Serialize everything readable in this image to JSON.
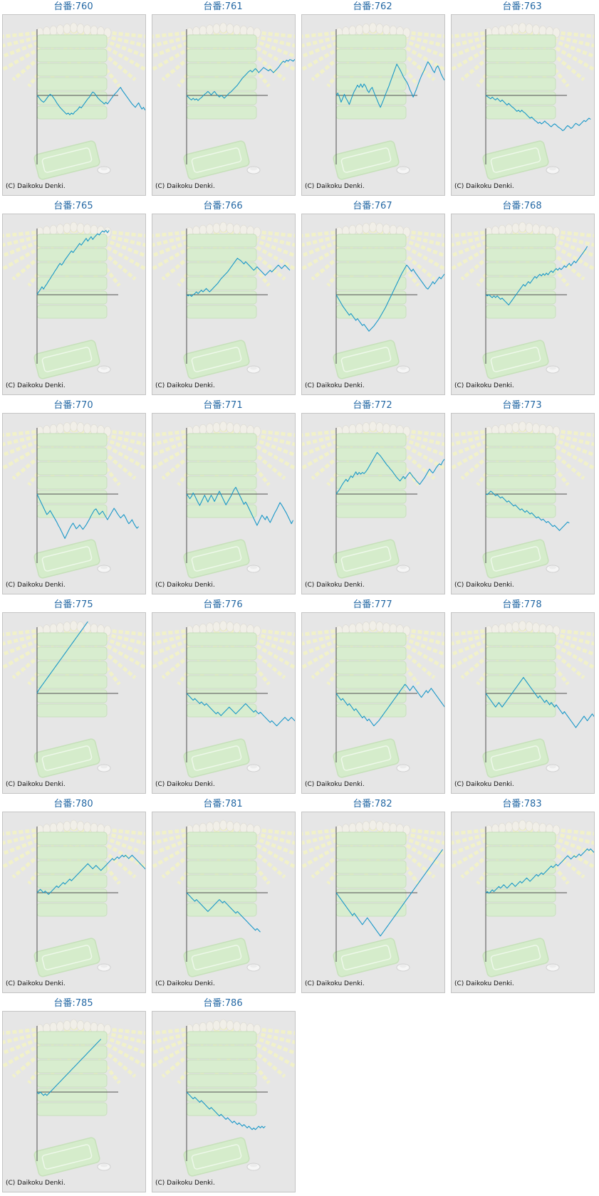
{
  "copyright": "(C) Daikoku Denki.",
  "colors": {
    "title": "#2468a4",
    "line": "#1a98c8",
    "axis": "#505050",
    "panel": "#e6e6e6"
  },
  "chart_data": [
    {
      "type": "line",
      "title": "台番:760",
      "values": [
        0,
        -3,
        -7,
        -10,
        -12,
        -9,
        -5,
        -1,
        2,
        0,
        -4,
        -8,
        -13,
        -17,
        -21,
        -24,
        -27,
        -30,
        -33,
        -31,
        -34,
        -31,
        -33,
        -29,
        -27,
        -24,
        -20,
        -22,
        -18,
        -14,
        -10,
        -6,
        -3,
        2,
        6,
        4,
        0,
        -4,
        -7,
        -10,
        -12,
        -15,
        -12,
        -15,
        -11,
        -7,
        -3,
        1,
        4,
        7,
        11,
        14,
        9,
        5,
        1,
        -3,
        -7,
        -11,
        -15,
        -18,
        -21,
        -17,
        -13,
        -19,
        -24,
        -21,
        -26
      ]
    },
    {
      "type": "line",
      "title": "台番:761",
      "values": [
        0,
        -3,
        -6,
        -8,
        -5,
        -8,
        -6,
        -9,
        -6,
        -4,
        -1,
        2,
        4,
        7,
        4,
        1,
        4,
        7,
        3,
        0,
        -3,
        0,
        -2,
        -5,
        -2,
        1,
        4,
        6,
        9,
        12,
        15,
        18,
        22,
        26,
        30,
        33,
        36,
        39,
        42,
        44,
        41,
        44,
        47,
        44,
        40,
        43,
        46,
        49,
        47,
        45,
        43,
        46,
        43,
        40,
        43,
        46,
        49,
        53,
        57,
        60,
        58,
        62,
        60,
        63,
        62,
        60,
        63,
        61,
        65,
        69,
        72,
        76
      ]
    },
    {
      "type": "line",
      "title": "台番:762",
      "values": [
        0,
        4,
        -3,
        -12,
        -5,
        2,
        -5,
        -10,
        -16,
        -8,
        0,
        7,
        12,
        18,
        14,
        20,
        14,
        20,
        16,
        9,
        5,
        11,
        14,
        6,
        -1,
        -8,
        -15,
        -21,
        -14,
        -7,
        1,
        8,
        15,
        23,
        31,
        39,
        47,
        55,
        50,
        45,
        39,
        33,
        28,
        24,
        18,
        10,
        4,
        -3,
        4,
        11,
        19,
        27,
        34,
        40,
        46,
        53,
        59,
        55,
        50,
        44,
        40,
        48,
        52,
        46,
        38,
        32,
        27,
        34,
        26,
        19,
        14,
        8,
        4,
        9,
        14,
        16
      ]
    },
    {
      "type": "line",
      "title": "台番:763",
      "values": [
        0,
        -2,
        -4,
        -6,
        -3,
        -6,
        -8,
        -5,
        -8,
        -11,
        -8,
        -11,
        -14,
        -17,
        -14,
        -17,
        -20,
        -22,
        -25,
        -28,
        -26,
        -29,
        -26,
        -29,
        -31,
        -34,
        -37,
        -40,
        -38,
        -41,
        -44,
        -46,
        -49,
        -47,
        -50,
        -48,
        -45,
        -48,
        -50,
        -53,
        -55,
        -52,
        -50,
        -52,
        -55,
        -57,
        -59,
        -62,
        -60,
        -56,
        -53,
        -55,
        -58,
        -56,
        -52,
        -49,
        -51,
        -53,
        -50,
        -47,
        -44,
        -46,
        -43,
        -40,
        -42
      ]
    },
    {
      "type": "line",
      "title": "台番:765",
      "values": [
        0,
        5,
        9,
        14,
        10,
        15,
        19,
        24,
        28,
        33,
        37,
        42,
        46,
        51,
        55,
        52,
        56,
        61,
        65,
        69,
        73,
        77,
        74,
        78,
        82,
        86,
        90,
        87,
        91,
        95,
        99,
        94,
        98,
        102,
        97,
        101,
        104,
        107,
        105,
        109,
        112,
        110,
        113,
        109,
        113
      ]
    },
    {
      "type": "line",
      "title": "台番:766",
      "values": [
        0,
        -2,
        0,
        -3,
        0,
        2,
        5,
        2,
        5,
        8,
        5,
        8,
        11,
        8,
        5,
        8,
        11,
        14,
        17,
        20,
        24,
        28,
        31,
        34,
        37,
        40,
        44,
        48,
        52,
        56,
        60,
        64,
        62,
        60,
        57,
        54,
        58,
        55,
        52,
        49,
        46,
        43,
        46,
        49,
        46,
        43,
        40,
        37,
        34,
        37,
        40,
        43,
        40,
        43,
        46,
        49,
        52,
        49,
        46,
        49,
        52,
        49,
        46,
        43
      ]
    },
    {
      "type": "line",
      "title": "台番:767",
      "values": [
        0,
        -5,
        -10,
        -15,
        -20,
        -24,
        -28,
        -32,
        -36,
        -33,
        -37,
        -41,
        -45,
        -42,
        -46,
        -50,
        -54,
        -52,
        -56,
        -60,
        -64,
        -61,
        -58,
        -55,
        -51,
        -47,
        -43,
        -38,
        -33,
        -28,
        -23,
        -17,
        -11,
        -5,
        1,
        7,
        13,
        19,
        25,
        31,
        37,
        42,
        47,
        52,
        49,
        45,
        41,
        45,
        40,
        36,
        32,
        28,
        24,
        20,
        16,
        12,
        10,
        14,
        18,
        23,
        19,
        23,
        27,
        31,
        28,
        32,
        36,
        34,
        38
      ]
    },
    {
      "type": "line",
      "title": "台番:768",
      "values": [
        0,
        -2,
        0,
        -3,
        -5,
        -2,
        -5,
        -2,
        -5,
        -8,
        -6,
        -9,
        -12,
        -15,
        -18,
        -14,
        -10,
        -6,
        -2,
        2,
        6,
        10,
        14,
        18,
        15,
        19,
        23,
        20,
        24,
        28,
        32,
        29,
        33,
        36,
        33,
        37,
        34,
        38,
        35,
        39,
        42,
        39,
        43,
        46,
        43,
        47,
        44,
        47,
        51,
        48,
        52,
        55,
        51,
        55,
        59,
        56,
        60,
        64,
        68,
        72,
        76,
        80,
        85
      ]
    },
    {
      "type": "line",
      "title": "台番:770",
      "values": [
        0,
        -6,
        -12,
        -18,
        -24,
        -30,
        -36,
        -33,
        -29,
        -34,
        -39,
        -44,
        -49,
        -55,
        -60,
        -66,
        -72,
        -78,
        -72,
        -66,
        -60,
        -55,
        -51,
        -56,
        -61,
        -58,
        -54,
        -58,
        -62,
        -58,
        -54,
        -49,
        -44,
        -38,
        -33,
        -28,
        -26,
        -31,
        -36,
        -33,
        -30,
        -35,
        -40,
        -45,
        -40,
        -35,
        -30,
        -25,
        -29,
        -34,
        -38,
        -42,
        -39,
        -36,
        -41,
        -47,
        -52,
        -49,
        -45,
        -51,
        -56,
        -60,
        -57
      ]
    },
    {
      "type": "line",
      "title": "台番:771",
      "values": [
        0,
        -4,
        -8,
        -4,
        2,
        -3,
        -9,
        -15,
        -20,
        -14,
        -8,
        -2,
        -8,
        -14,
        -8,
        -2,
        -7,
        -13,
        -7,
        -1,
        5,
        -1,
        -7,
        -13,
        -19,
        -14,
        -9,
        -4,
        2,
        8,
        12,
        6,
        0,
        -6,
        -12,
        -18,
        -14,
        -19,
        -25,
        -31,
        -37,
        -43,
        -49,
        -55,
        -49,
        -43,
        -37,
        -41,
        -45,
        -39,
        -45,
        -50,
        -44,
        -38,
        -32,
        -27,
        -21,
        -15,
        -19,
        -24,
        -29,
        -34,
        -40,
        -46,
        -52,
        -46
      ]
    },
    {
      "type": "line",
      "title": "台番:772",
      "values": [
        0,
        4,
        8,
        13,
        18,
        22,
        26,
        22,
        27,
        32,
        29,
        34,
        39,
        34,
        38,
        35,
        38,
        36,
        39,
        43,
        48,
        53,
        58,
        63,
        68,
        73,
        70,
        67,
        63,
        59,
        55,
        51,
        48,
        44,
        41,
        37,
        33,
        29,
        26,
        23,
        27,
        31,
        27,
        31,
        35,
        38,
        34,
        30,
        27,
        23,
        20,
        17,
        21,
        25,
        29,
        34,
        39,
        44,
        40,
        37,
        41,
        46,
        50,
        53,
        51,
        57,
        61,
        57,
        54
      ]
    },
    {
      "type": "line",
      "title": "台番:773",
      "values": [
        0,
        -1,
        2,
        5,
        3,
        0,
        -3,
        -1,
        -4,
        -7,
        -5,
        -8,
        -11,
        -14,
        -12,
        -15,
        -18,
        -21,
        -19,
        -22,
        -25,
        -28,
        -26,
        -29,
        -32,
        -29,
        -32,
        -35,
        -33,
        -36,
        -39,
        -42,
        -40,
        -43,
        -46,
        -44,
        -47,
        -50,
        -48,
        -51,
        -54,
        -57,
        -55,
        -58,
        -61,
        -64,
        -61,
        -58,
        -55,
        -52,
        -49,
        -51
      ]
    },
    {
      "type": "line",
      "title": "台番:775",
      "values": [
        0,
        6,
        10,
        14,
        18,
        22,
        26,
        30,
        34,
        38,
        42,
        46,
        50,
        54,
        58,
        62,
        66,
        70,
        74,
        78,
        82,
        86,
        90,
        94,
        98,
        102,
        106,
        110,
        114,
        118,
        122,
        126
      ]
    },
    {
      "type": "line",
      "title": "台番:776",
      "values": [
        0,
        -3,
        -6,
        -9,
        -12,
        -9,
        -12,
        -15,
        -18,
        -15,
        -18,
        -21,
        -18,
        -21,
        -24,
        -27,
        -30,
        -33,
        -36,
        -33,
        -36,
        -39,
        -36,
        -33,
        -30,
        -27,
        -24,
        -27,
        -30,
        -33,
        -36,
        -33,
        -30,
        -27,
        -24,
        -21,
        -18,
        -21,
        -24,
        -27,
        -30,
        -33,
        -30,
        -33,
        -36,
        -33,
        -36,
        -39,
        -42,
        -45,
        -48,
        -51,
        -48,
        -51,
        -54,
        -57,
        -54,
        -51,
        -48,
        -45,
        -42,
        -45,
        -48,
        -45,
        -42,
        -45,
        -48,
        -45,
        -42,
        -39,
        -42,
        -45,
        -48,
        -51,
        -48,
        -45,
        -42,
        -45,
        -48,
        -51,
        -48,
        -45,
        -42,
        -39,
        -36,
        -33,
        -36,
        -39,
        -42
      ]
    },
    {
      "type": "line",
      "title": "台番:777",
      "values": [
        0,
        -4,
        -8,
        -12,
        -9,
        -13,
        -17,
        -21,
        -18,
        -22,
        -26,
        -30,
        -27,
        -31,
        -35,
        -39,
        -43,
        -40,
        -44,
        -48,
        -45,
        -49,
        -53,
        -57,
        -54,
        -51,
        -48,
        -44,
        -40,
        -36,
        -32,
        -28,
        -24,
        -20,
        -16,
        -12,
        -8,
        -4,
        0,
        4,
        8,
        12,
        16,
        13,
        9,
        5,
        9,
        13,
        9,
        5,
        1,
        -3,
        -7,
        -3,
        1,
        5,
        1,
        5,
        9,
        5,
        1,
        -3,
        -7,
        -11,
        -15,
        -19,
        -23,
        -27,
        -31,
        -35,
        -39,
        -36,
        -40,
        -44,
        -48
      ]
    },
    {
      "type": "line",
      "title": "台番:778",
      "values": [
        0,
        -4,
        -8,
        -12,
        -16,
        -20,
        -24,
        -20,
        -16,
        -20,
        -24,
        -20,
        -16,
        -12,
        -8,
        -4,
        0,
        4,
        8,
        12,
        16,
        20,
        24,
        28,
        24,
        20,
        16,
        12,
        8,
        4,
        0,
        -4,
        -8,
        -4,
        -8,
        -12,
        -16,
        -12,
        -16,
        -20,
        -16,
        -20,
        -24,
        -20,
        -24,
        -28,
        -32,
        -36,
        -32,
        -36,
        -40,
        -44,
        -48,
        -52,
        -56,
        -60,
        -56,
        -52,
        -48,
        -44,
        -40,
        -44,
        -48,
        -44,
        -40,
        -36,
        -40,
        -44,
        -40,
        -36,
        -32,
        -36,
        -40,
        -44
      ]
    },
    {
      "type": "line",
      "title": "台番:780",
      "values": [
        0,
        3,
        6,
        3,
        0,
        3,
        0,
        -3,
        0,
        3,
        6,
        9,
        12,
        9,
        12,
        15,
        18,
        15,
        18,
        21,
        24,
        21,
        24,
        27,
        30,
        33,
        36,
        39,
        42,
        45,
        48,
        51,
        48,
        45,
        42,
        45,
        48,
        45,
        42,
        39,
        42,
        45,
        48,
        51,
        54,
        57,
        60,
        57,
        60,
        63,
        60,
        63,
        66,
        63,
        66,
        63,
        60,
        63,
        66,
        63,
        60,
        57,
        54,
        51,
        48,
        45,
        42,
        39,
        36,
        33,
        30,
        27,
        24,
        21,
        18,
        15,
        18,
        15
      ]
    },
    {
      "type": "line",
      "title": "台番:781",
      "values": [
        0,
        -3,
        -6,
        -9,
        -12,
        -15,
        -12,
        -15,
        -18,
        -21,
        -24,
        -27,
        -30,
        -33,
        -30,
        -27,
        -24,
        -21,
        -18,
        -15,
        -12,
        -15,
        -18,
        -15,
        -18,
        -21,
        -24,
        -27,
        -30,
        -33,
        -36,
        -33,
        -36,
        -39,
        -42,
        -45,
        -48,
        -51,
        -54,
        -57,
        -60,
        -63,
        -66,
        -63,
        -66,
        -69
      ]
    },
    {
      "type": "line",
      "title": "台番:782",
      "values": [
        0,
        -4,
        -8,
        -12,
        -16,
        -20,
        -24,
        -28,
        -32,
        -36,
        -40,
        -36,
        -40,
        -44,
        -48,
        -52,
        -56,
        -52,
        -48,
        -44,
        -48,
        -52,
        -56,
        -60,
        -64,
        -68,
        -72,
        -76,
        -72,
        -68,
        -64,
        -60,
        -56,
        -52,
        -48,
        -44,
        -40,
        -36,
        -32,
        -28,
        -24,
        -20,
        -16,
        -12,
        -8,
        -4,
        0,
        4,
        8,
        12,
        16,
        20,
        24,
        28,
        32,
        36,
        40,
        44,
        48,
        52,
        56,
        60,
        64,
        68,
        72,
        76
      ]
    },
    {
      "type": "line",
      "title": "台番:783",
      "values": [
        0,
        2,
        -1,
        2,
        5,
        2,
        5,
        8,
        11,
        8,
        11,
        14,
        11,
        8,
        11,
        14,
        17,
        14,
        11,
        14,
        17,
        20,
        17,
        20,
        23,
        26,
        23,
        20,
        23,
        26,
        29,
        32,
        29,
        32,
        35,
        32,
        35,
        38,
        41,
        44,
        47,
        44,
        47,
        50,
        47,
        50,
        53,
        56,
        59,
        62,
        65,
        62,
        59,
        62,
        65,
        62,
        65,
        68,
        65,
        68,
        71,
        74,
        77,
        74,
        77,
        74,
        71,
        74,
        71
      ]
    },
    {
      "type": "line",
      "title": "台番:785",
      "values": [
        0,
        -3,
        0,
        -3,
        -6,
        -3,
        -6,
        -3,
        0,
        3,
        6,
        9,
        12,
        15,
        18,
        21,
        24,
        27,
        30,
        33,
        36,
        39,
        42,
        45,
        48,
        51,
        54,
        57,
        60,
        63,
        66,
        69,
        72,
        75,
        78,
        81,
        84,
        87,
        90,
        93
      ]
    },
    {
      "type": "line",
      "title": "台番:786",
      "values": [
        0,
        -3,
        -6,
        -9,
        -12,
        -9,
        -12,
        -15,
        -18,
        -15,
        -18,
        -21,
        -24,
        -27,
        -30,
        -27,
        -30,
        -33,
        -36,
        -39,
        -42,
        -39,
        -42,
        -45,
        -48,
        -45,
        -48,
        -51,
        -54,
        -51,
        -54,
        -57,
        -54,
        -57,
        -60,
        -57,
        -60,
        -63,
        -60,
        -63,
        -66,
        -63,
        -66,
        -63,
        -60,
        -63,
        -60,
        -63,
        -60
      ]
    }
  ]
}
